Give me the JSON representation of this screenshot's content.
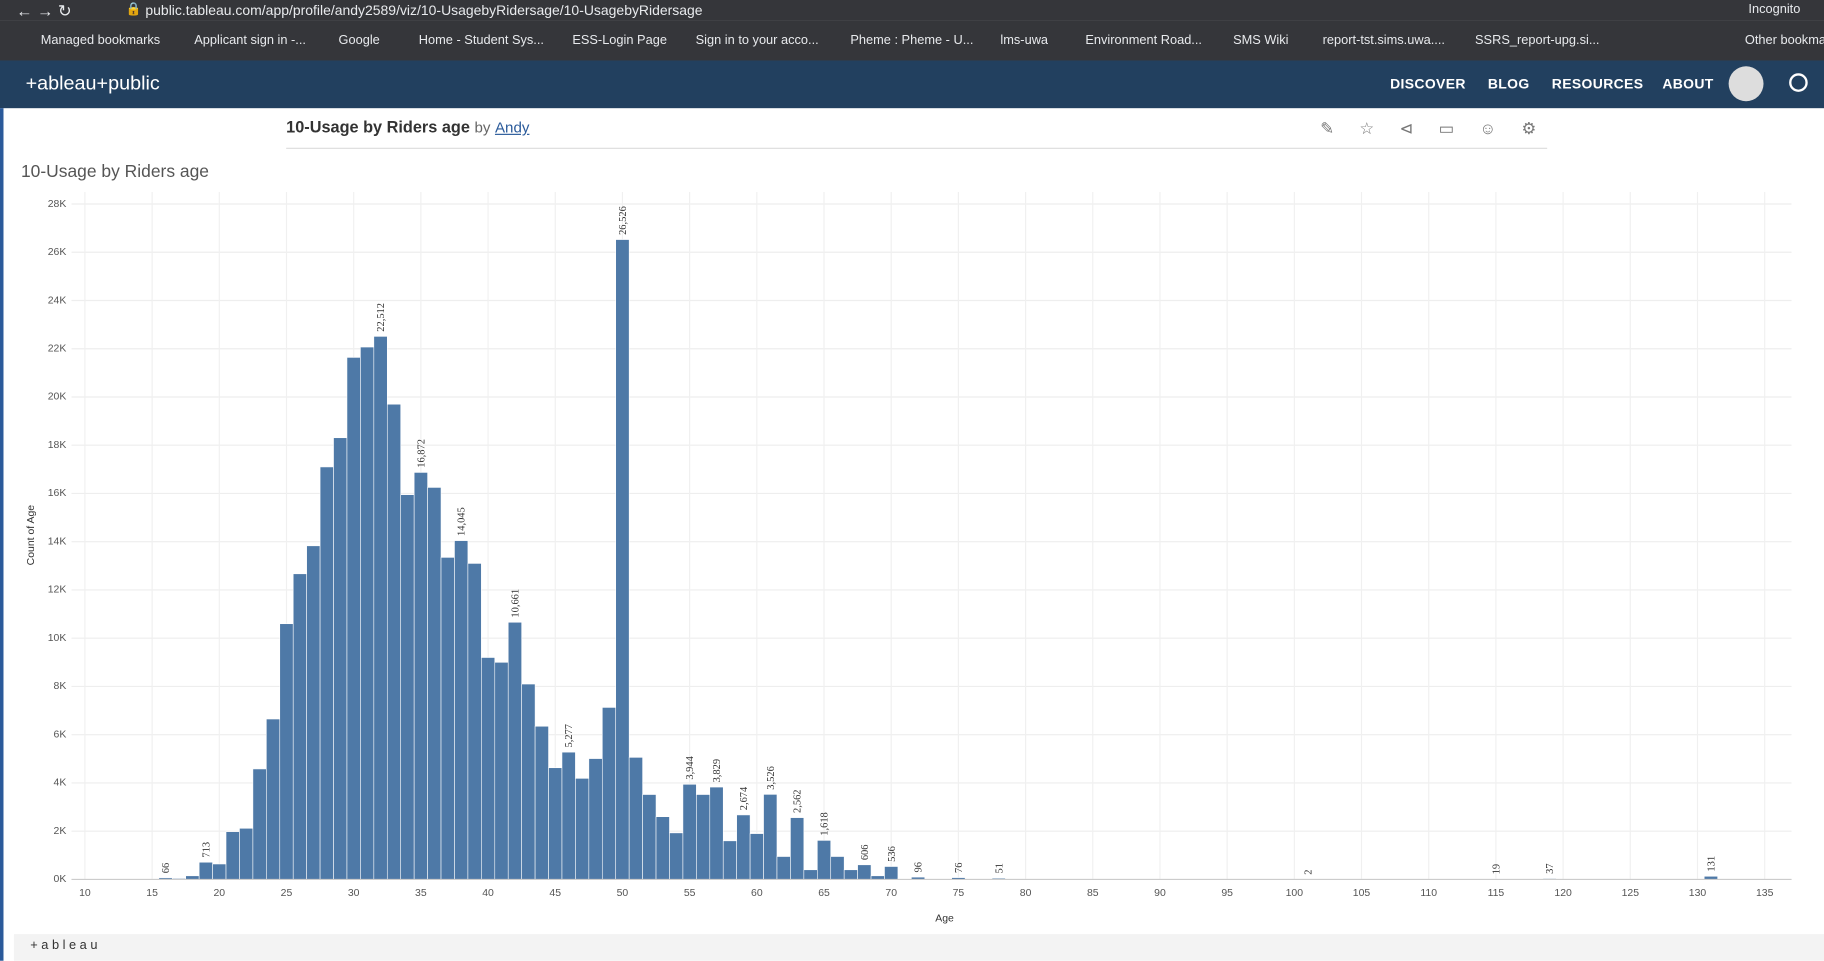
{
  "browser": {
    "url": "public.tableau.com/app/profile/andy2589/viz/10-UsagebyRidersage/10-UsagebyRidersage",
    "incognito": "Incognito",
    "bookmarks": [
      "Managed bookmarks",
      "Applicant sign in -...",
      "Google",
      "Home - Student Sys...",
      "ESS-Login Page",
      "Sign in to your acco...",
      "Pheme : Pheme - U...",
      "lms-uwa",
      "Environment Road...",
      "SMS Wiki",
      "report-tst.sims.uwa....",
      "SSRS_report-upg.si...",
      "Other bookma"
    ]
  },
  "header": {
    "logo": "+ableau+public",
    "nav": [
      "DISCOVER",
      "BLOG",
      "RESOURCES",
      "ABOUT"
    ]
  },
  "viz": {
    "title": "10-Usage by Riders age",
    "by": "by",
    "author": "Andy"
  },
  "footer": {
    "logo": "+ a b l e a u"
  },
  "chart_data": {
    "type": "bar",
    "title": "10-Usage by Riders age",
    "x_label": "Age",
    "y_label": "Count of Age",
    "color": "#4e79a7",
    "grid": true,
    "x": [
      16,
      17,
      18,
      19,
      20,
      21,
      22,
      23,
      24,
      25,
      26,
      27,
      28,
      29,
      30,
      31,
      32,
      33,
      34,
      35,
      36,
      37,
      38,
      39,
      40,
      41,
      42,
      43,
      44,
      45,
      46,
      47,
      48,
      49,
      50,
      51,
      52,
      53,
      54,
      55,
      56,
      57,
      58,
      59,
      60,
      61,
      62,
      63,
      64,
      65,
      66,
      67,
      68,
      69,
      70,
      71,
      72,
      75,
      78,
      101,
      115,
      119,
      131
    ],
    "values": [
      66,
      40,
      150,
      713,
      640,
      1980,
      2120,
      4580,
      6650,
      10600,
      12670,
      13830,
      17100,
      18310,
      21640,
      22070,
      22512,
      19700,
      15950,
      16872,
      16250,
      13350,
      14045,
      13100,
      9200,
      9000,
      10661,
      8100,
      6350,
      4630,
      5277,
      4190,
      5010,
      7130,
      26526,
      5060,
      3520,
      2600,
      1930,
      3944,
      3520,
      3829,
      1600,
      2674,
      1900,
      3526,
      950,
      2562,
      400,
      1618,
      950,
      400,
      606,
      150,
      536,
      30,
      96,
      76,
      51,
      2,
      19,
      37,
      131
    ],
    "value_labels": [
      "66",
      null,
      null,
      "713",
      null,
      null,
      null,
      null,
      null,
      null,
      null,
      null,
      null,
      null,
      null,
      null,
      "22,512",
      null,
      null,
      "16,872",
      null,
      null,
      "14,045",
      null,
      null,
      null,
      "10,661",
      null,
      null,
      null,
      "5,277",
      null,
      null,
      null,
      "26,526",
      null,
      null,
      null,
      null,
      "3,944",
      null,
      "3,829",
      null,
      "2,674",
      null,
      "3,526",
      null,
      "2,562",
      null,
      "1,618",
      null,
      null,
      "606",
      null,
      "536",
      null,
      "96",
      "76",
      "51",
      "2",
      "19",
      "37",
      "131"
    ],
    "xlim": [
      9,
      137
    ],
    "xticks": [
      10,
      15,
      20,
      25,
      30,
      35,
      40,
      45,
      50,
      55,
      60,
      65,
      70,
      75,
      80,
      85,
      90,
      95,
      100,
      105,
      110,
      115,
      120,
      125,
      130,
      135
    ],
    "ylim": [
      0,
      28500
    ],
    "yticks": [
      {
        "value": 0,
        "label": "0K"
      },
      {
        "value": 2000,
        "label": "2K"
      },
      {
        "value": 4000,
        "label": "4K"
      },
      {
        "value": 6000,
        "label": "6K"
      },
      {
        "value": 8000,
        "label": "8K"
      },
      {
        "value": 10000,
        "label": "10K"
      },
      {
        "value": 12000,
        "label": "12K"
      },
      {
        "value": 14000,
        "label": "14K"
      },
      {
        "value": 16000,
        "label": "16K"
      },
      {
        "value": 18000,
        "label": "18K"
      },
      {
        "value": 20000,
        "label": "20K"
      },
      {
        "value": 22000,
        "label": "22K"
      },
      {
        "value": 24000,
        "label": "24K"
      },
      {
        "value": 26000,
        "label": "26K"
      },
      {
        "value": 28000,
        "label": "28K"
      }
    ]
  }
}
